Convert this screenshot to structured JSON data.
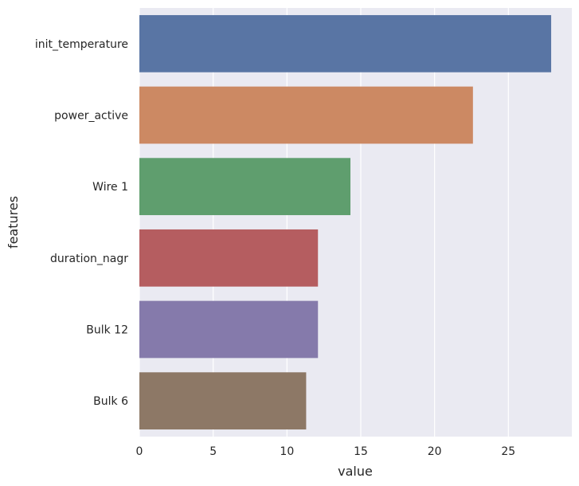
{
  "chart_data": {
    "type": "bar",
    "orientation": "horizontal",
    "categories": [
      "init_temperature",
      "power_active",
      "Wire 1",
      "duration_nagr",
      "Bulk 12",
      "Bulk 6"
    ],
    "values": [
      27.9,
      22.6,
      14.3,
      12.1,
      12.1,
      11.3
    ],
    "colors": [
      "#5975a4",
      "#cc8963",
      "#5f9e6e",
      "#b55d60",
      "#857aab",
      "#8d7866"
    ],
    "xlabel": "value",
    "ylabel": "features",
    "xlim": [
      0,
      29.3
    ],
    "xticks": [
      0,
      5,
      10,
      15,
      20,
      25
    ],
    "grid": true,
    "background": "#eaeaf2"
  }
}
